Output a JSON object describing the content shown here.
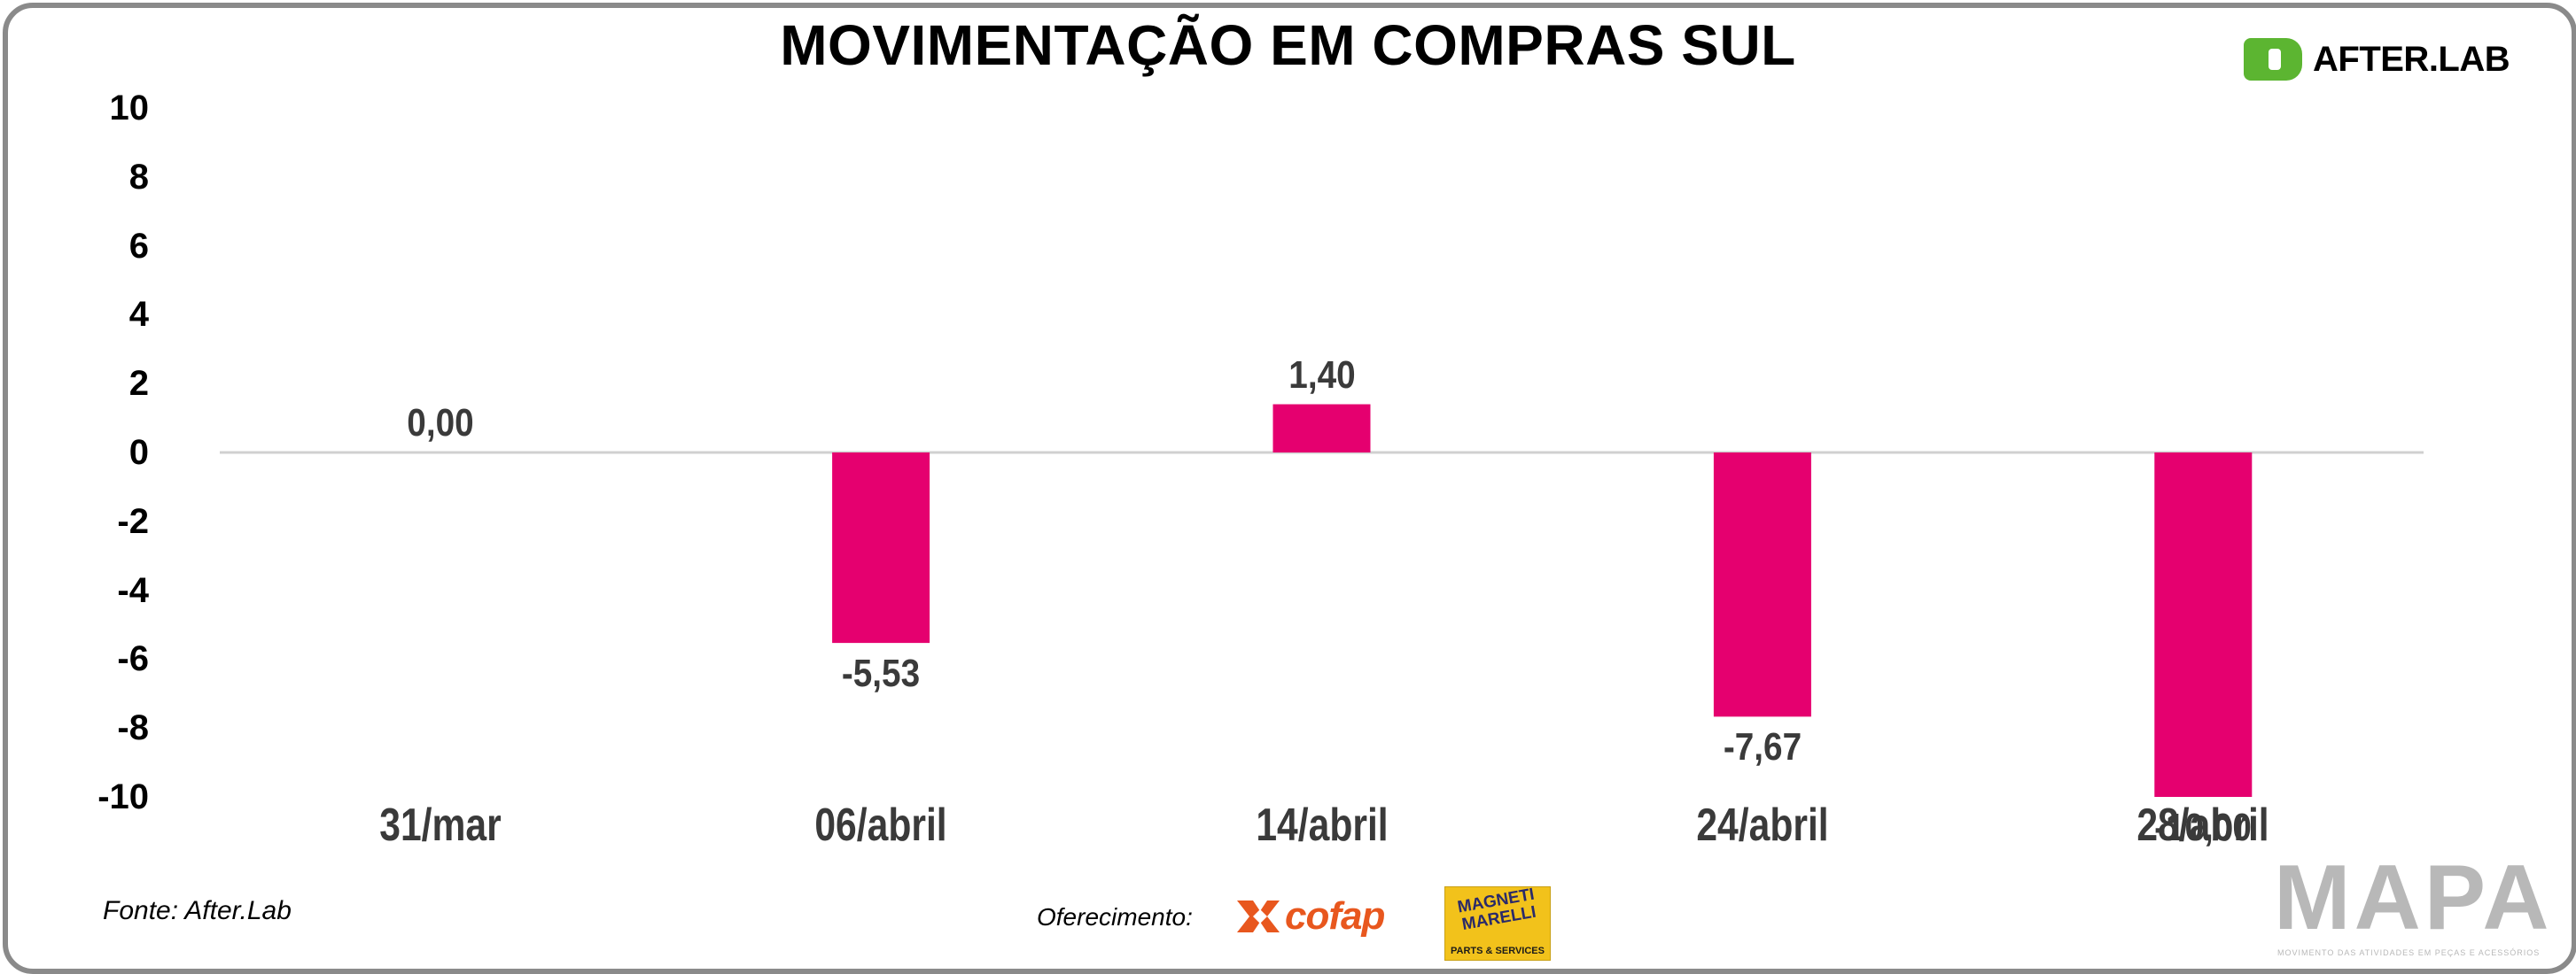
{
  "chart_data": {
    "type": "bar",
    "title": "MOVIMENTAÇÃO EM COMPRAS SUL",
    "categories": [
      "31/mar",
      "06/abril",
      "14/abril",
      "24/abril",
      "28/abril"
    ],
    "values": [
      0.0,
      -5.53,
      1.4,
      -7.67,
      -10.0
    ],
    "value_labels": [
      "0,00",
      "-5,53",
      "1,40",
      "-7,67",
      "-10,00"
    ],
    "ylim": [
      -10,
      10
    ],
    "yticks": [
      "10",
      "8",
      "6",
      "4",
      "2",
      "0",
      "-2",
      "-4",
      "-6",
      "-8",
      "-10"
    ],
    "xlabel": "",
    "ylabel": "",
    "grid": false,
    "bar_color": "#e5006f"
  },
  "logo": {
    "text": "AFTER.LAB",
    "icon": "after-lab-logo-icon",
    "color": "#5cb531"
  },
  "footer": {
    "source": "Fonte: After.Lab",
    "offer_label": "Oferecimento:",
    "sponsor1": "cofap",
    "sponsor2_top": "MAGNETI MARELLI",
    "sponsor2_bottom": "PARTS & SERVICES",
    "brand": "MAPA",
    "brand_sub": "MOVIMENTO DAS ATIVIDADES EM PEÇAS E ACESSÓRIOS"
  }
}
